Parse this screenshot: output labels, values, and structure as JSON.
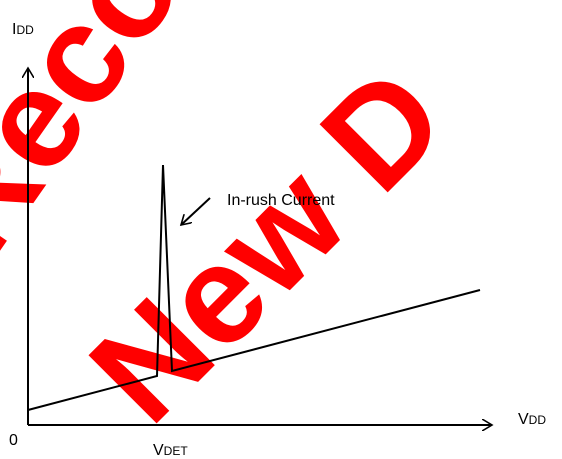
{
  "watermark": [
    "Reco",
    "New D"
  ],
  "y_axis_label": {
    "main": "I",
    "sub": "DD"
  },
  "x_axis_label": {
    "main": "V",
    "sub": "DD"
  },
  "origin_label": "0",
  "threshold_label": {
    "main": "V",
    "sub": "DET"
  },
  "annotation": "In-rush Current"
}
